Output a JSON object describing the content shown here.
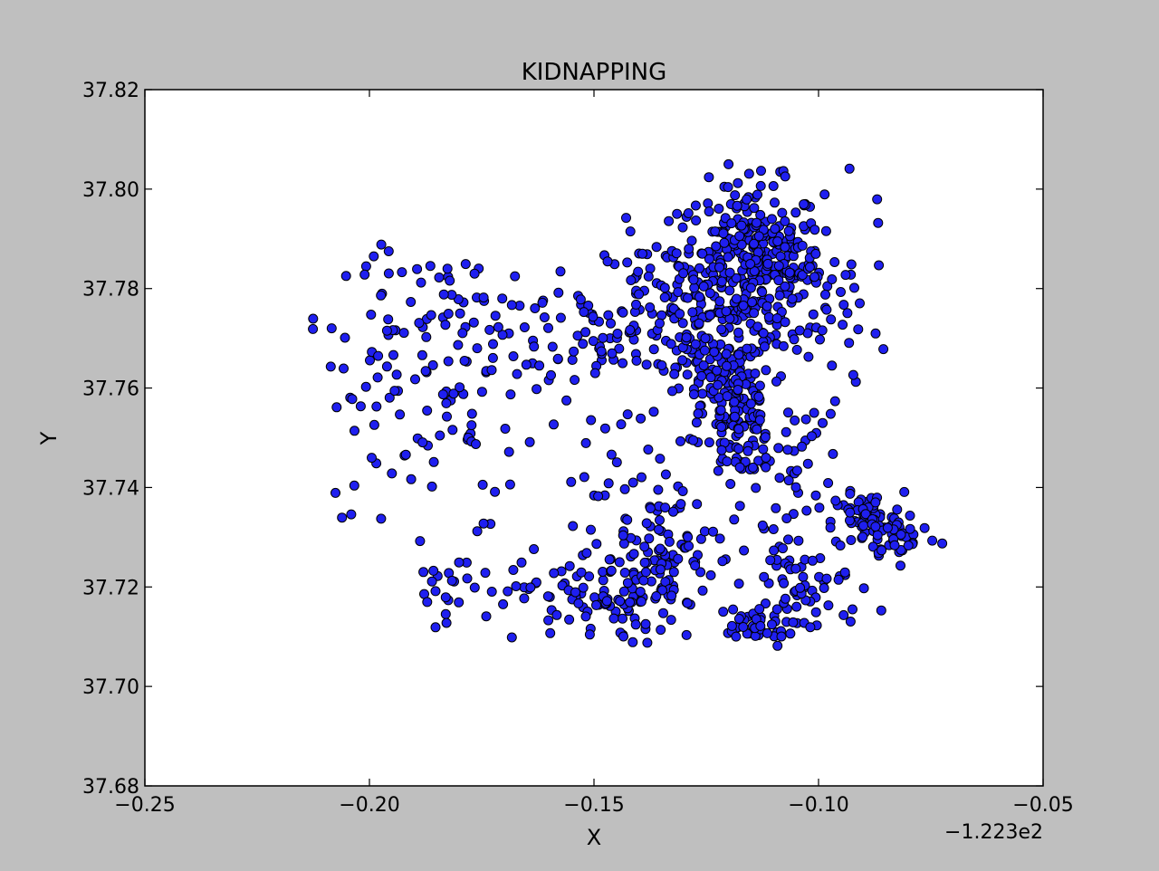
{
  "chart_data": {
    "type": "scatter",
    "title": "KIDNAPPING",
    "xlabel": "X",
    "ylabel": "Y",
    "x_offset_label": "−1.223e2",
    "xlim": [
      -0.25,
      -0.05
    ],
    "ylim": [
      37.68,
      37.82
    ],
    "x_ticks": [
      -0.25,
      -0.2,
      -0.15,
      -0.1,
      -0.05
    ],
    "x_tick_labels": [
      "−0.25",
      "−0.20",
      "−0.15",
      "−0.10",
      "−0.05"
    ],
    "y_ticks": [
      37.68,
      37.7,
      37.72,
      37.74,
      37.76,
      37.78,
      37.8,
      37.82
    ],
    "y_tick_labels": [
      "37.68",
      "37.70",
      "37.72",
      "37.74",
      "37.76",
      "37.78",
      "37.80",
      "37.82"
    ],
    "grid": false,
    "legend": "none",
    "marker_color": "#1f1ff0",
    "marker_edge": "#000000",
    "point_count": 1400,
    "clusters": [
      {
        "cx": -0.115,
        "cy": 37.785,
        "sx": 0.008,
        "sy": 0.008,
        "n": 340
      },
      {
        "cx": -0.118,
        "cy": 37.757,
        "sx": 0.004,
        "sy": 0.008,
        "n": 140
      },
      {
        "cx": -0.135,
        "cy": 37.778,
        "sx": 0.008,
        "sy": 0.006,
        "n": 80
      },
      {
        "cx": -0.089,
        "cy": 37.733,
        "sx": 0.004,
        "sy": 0.003,
        "n": 70
      },
      {
        "cx": -0.081,
        "cy": 37.73,
        "sx": 0.004,
        "sy": 0.002,
        "n": 30
      },
      {
        "cx": -0.135,
        "cy": 37.725,
        "sx": 0.006,
        "sy": 0.006,
        "n": 80
      },
      {
        "cx": -0.115,
        "cy": 37.712,
        "sx": 0.005,
        "sy": 0.002,
        "n": 40
      },
      {
        "cx": -0.15,
        "cy": 37.718,
        "sx": 0.008,
        "sy": 0.005,
        "n": 80
      },
      {
        "cx": -0.102,
        "cy": 37.72,
        "sx": 0.007,
        "sy": 0.005,
        "n": 60
      },
      {
        "cx": -0.108,
        "cy": 37.745,
        "sx": 0.007,
        "sy": 0.006,
        "n": 50
      },
      {
        "cx": -0.128,
        "cy": 37.765,
        "sx": 0.006,
        "sy": 0.005,
        "n": 50
      },
      {
        "cx": -0.175,
        "cy": 37.775,
        "sx": 0.015,
        "sy": 0.006,
        "n": 60
      },
      {
        "cx": -0.195,
        "cy": 37.76,
        "sx": 0.01,
        "sy": 0.012,
        "n": 60
      },
      {
        "cx": -0.175,
        "cy": 37.755,
        "sx": 0.01,
        "sy": 0.01,
        "n": 40
      },
      {
        "cx": -0.18,
        "cy": 37.718,
        "sx": 0.008,
        "sy": 0.005,
        "n": 30
      },
      {
        "cx": -0.135,
        "cy": 37.74,
        "sx": 0.015,
        "sy": 0.012,
        "n": 60
      },
      {
        "cx": -0.1,
        "cy": 37.775,
        "sx": 0.008,
        "sy": 0.01,
        "n": 50
      },
      {
        "cx": -0.15,
        "cy": 37.77,
        "sx": 0.01,
        "sy": 0.006,
        "n": 40
      }
    ]
  }
}
